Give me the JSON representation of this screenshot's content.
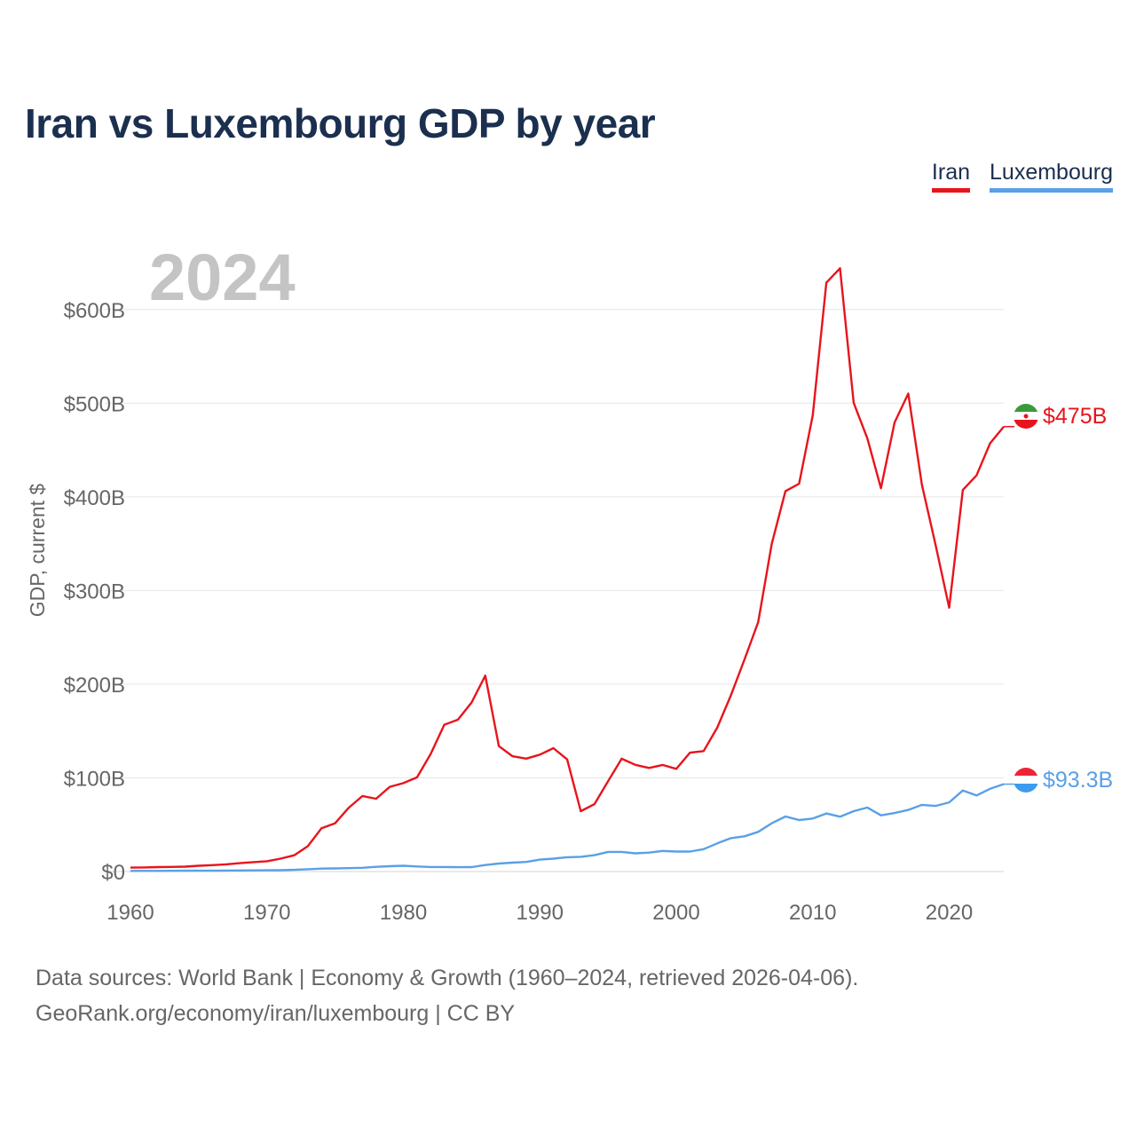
{
  "title": "Iran vs Luxembourg GDP by year",
  "year_watermark": "2024",
  "legend": {
    "iran": "Iran",
    "lux": "Luxembourg"
  },
  "end_labels": {
    "iran": "$475B",
    "lux": "$93.3B"
  },
  "footer": {
    "line1": "Data sources: World Bank | Economy & Growth (1960–2024, retrieved 2026-04-06).",
    "line2": "GeoRank.org/economy/iran/luxembourg | CC BY"
  },
  "colors": {
    "iran": "#e8141c",
    "lux": "#5aa0e6",
    "title": "#1b2f4f"
  },
  "chart_data": {
    "type": "line",
    "title": "Iran vs Luxembourg GDP by year",
    "ylabel": "GDP, current $",
    "xlabel": "",
    "xlim": [
      1960,
      2024
    ],
    "ylim": [
      0,
      650
    ],
    "units": "billions USD",
    "x_ticks": [
      1960,
      1970,
      1980,
      1990,
      2000,
      2010,
      2020
    ],
    "x_tick_labels": [
      "1960",
      "1970",
      "1980",
      "1990",
      "2000",
      "2010",
      "2020"
    ],
    "y_ticks": [
      0,
      100,
      200,
      300,
      400,
      500,
      600
    ],
    "y_tick_labels": [
      "$0",
      "$100B",
      "$200B",
      "$300B",
      "$400B",
      "$500B",
      "$600B"
    ],
    "x": [
      1960,
      1961,
      1962,
      1963,
      1964,
      1965,
      1966,
      1967,
      1968,
      1969,
      1970,
      1971,
      1972,
      1973,
      1974,
      1975,
      1976,
      1977,
      1978,
      1979,
      1980,
      1981,
      1982,
      1983,
      1984,
      1985,
      1986,
      1987,
      1988,
      1989,
      1990,
      1991,
      1992,
      1993,
      1994,
      1995,
      1996,
      1997,
      1998,
      1999,
      2000,
      2001,
      2002,
      2003,
      2004,
      2005,
      2006,
      2007,
      2008,
      2009,
      2010,
      2011,
      2012,
      2013,
      2014,
      2015,
      2016,
      2017,
      2018,
      2019,
      2020,
      2021,
      2022,
      2023,
      2024
    ],
    "series": [
      {
        "name": "Iran",
        "values": [
          4.2,
          4.4,
          4.7,
          4.9,
          5.2,
          6.2,
          6.8,
          7.7,
          8.9,
          10.0,
          11.0,
          13.7,
          17.3,
          27.1,
          46.2,
          51.5,
          68.1,
          80.6,
          77.7,
          90.4,
          94.4,
          100.5,
          125.5,
          156.7,
          162.1,
          180.5,
          209.1,
          133.9,
          123.1,
          120.5,
          124.8,
          131.7,
          119.8,
          64.4,
          71.9,
          96.4,
          120.4,
          113.9,
          110.6,
          113.8,
          109.6,
          126.9,
          128.6,
          153.5,
          188.0,
          226.5,
          266.3,
          349.9,
          406.1,
          414.1,
          487.1,
          628.6,
          644.0,
          500.4,
          462.5,
          409.2,
          479.4,
          510.2,
          412.7,
          349.1,
          281.7,
          407.3,
          422.9,
          457.2,
          475.0
        ]
      },
      {
        "name": "Luxembourg",
        "values": [
          0.7,
          0.7,
          0.7,
          0.8,
          0.9,
          0.9,
          0.9,
          1.0,
          1.1,
          1.2,
          1.3,
          1.4,
          1.8,
          2.5,
          3.1,
          3.3,
          3.6,
          4.0,
          5.0,
          5.7,
          6.2,
          5.4,
          4.8,
          4.8,
          4.6,
          4.7,
          6.9,
          8.5,
          9.5,
          10.2,
          12.7,
          13.7,
          15.3,
          15.7,
          17.4,
          20.9,
          20.9,
          19.4,
          20.2,
          22.0,
          21.3,
          21.3,
          23.9,
          30.0,
          35.6,
          37.6,
          42.4,
          51.5,
          58.7,
          55.0,
          56.6,
          62.0,
          58.6,
          64.4,
          68.3,
          60.0,
          62.4,
          65.8,
          71.2,
          70.0,
          73.8,
          86.5,
          81.2,
          88.3,
          93.3
        ]
      }
    ]
  }
}
